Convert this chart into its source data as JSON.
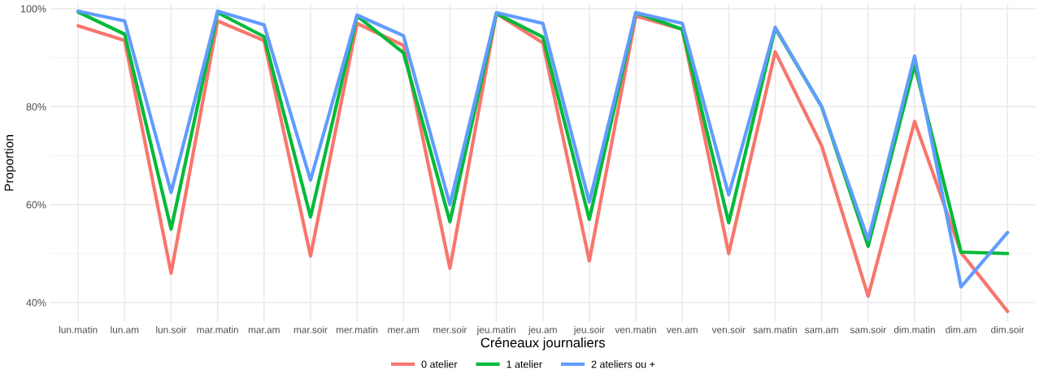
{
  "chart_data": {
    "type": "line",
    "xlabel": "Créneaux journaliers",
    "ylabel": "Proportion",
    "categories": [
      "lun.matin",
      "lun.am",
      "lun.soir",
      "mar.matin",
      "mar.am",
      "mar.soir",
      "mer.matin",
      "mer.am",
      "mer.soir",
      "jeu.matin",
      "jeu.am",
      "jeu.soir",
      "ven.matin",
      "ven.am",
      "ven.soir",
      "sam.matin",
      "sam.am",
      "sam.soir",
      "dim.matin",
      "dim.am",
      "dim.soir"
    ],
    "series": [
      {
        "name": "0 atelier",
        "color": "#f8766d",
        "values": [
          96.5,
          93.5,
          46,
          97.5,
          93.5,
          49.5,
          97,
          92.5,
          47,
          99,
          93,
          48.5,
          98.5,
          95.8,
          50,
          91.2,
          72,
          41.3,
          77,
          50.2,
          38.2
        ]
      },
      {
        "name": "1 atelier",
        "color": "#00ba38",
        "values": [
          99.3,
          94.8,
          55,
          99.2,
          94.3,
          57.5,
          98.5,
          91,
          56.5,
          99,
          94.2,
          57,
          99.2,
          95.8,
          56.3,
          96,
          80,
          51.5,
          88.5,
          50.3,
          50
        ]
      },
      {
        "name": "2 ateliers ou +",
        "color": "#619cff",
        "values": [
          99.5,
          97.5,
          62.5,
          99.5,
          96.7,
          65,
          98.7,
          94.5,
          60,
          99.2,
          97,
          60.5,
          99.2,
          97,
          62,
          96.2,
          80,
          52.8,
          90.3,
          43.2,
          54.3
        ]
      }
    ],
    "ylim": [
      36,
      101
    ],
    "yticks": [
      {
        "value": 40,
        "label": "40%"
      },
      {
        "value": 60,
        "label": "60%"
      },
      {
        "value": 80,
        "label": "80%"
      },
      {
        "value": 100,
        "label": "100%"
      }
    ],
    "grid": true,
    "legend": "bottom",
    "marker": "none",
    "line_style": "solid"
  }
}
